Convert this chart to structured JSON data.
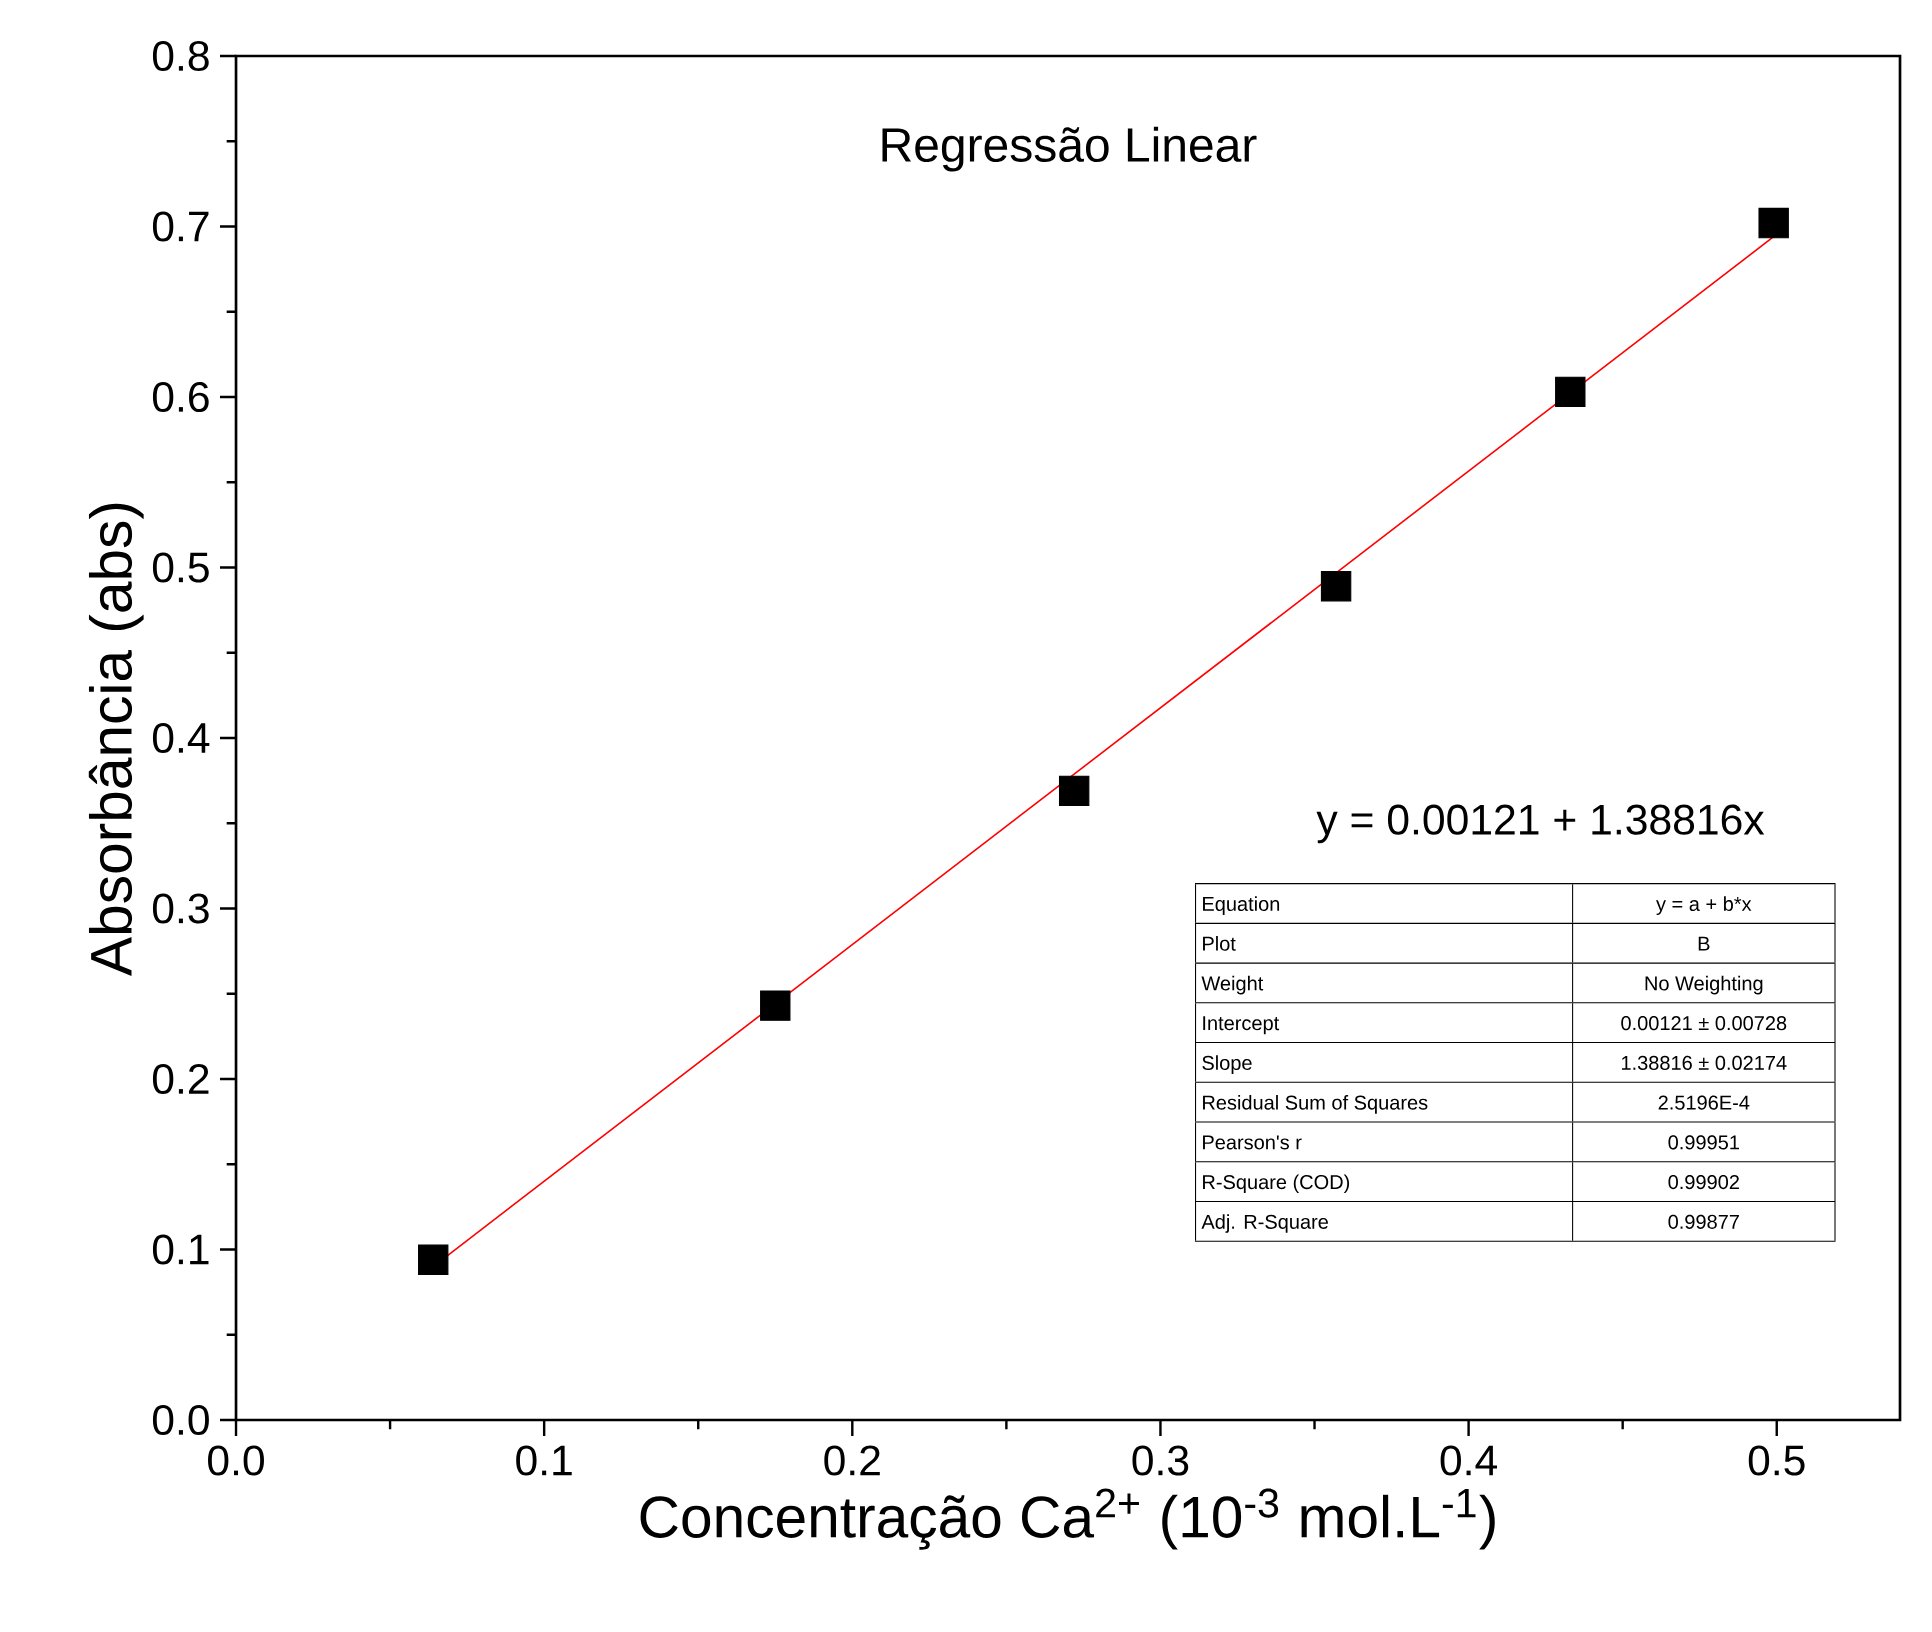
{
  "chart_data": {
    "type": "scatter",
    "title": "Regressão Linear",
    "xlabel": "Concentração Ca$^{2+}$ (10$^{-3}$ mol.L$^{-1}$)",
    "ylabel": "Absorbância (abs)",
    "series": [
      {
        "color": "#000000",
        "x": [
          0.064,
          0.175,
          0.272,
          0.357,
          0.433,
          0.499
        ],
        "values": [
          0.094,
          0.243,
          0.369,
          0.489,
          0.603,
          0.702
        ]
      },
      {
        "type": "line",
        "marker": "none",
        "color": "#ff0000",
        "x": [
          0.064,
          0.499
        ],
        "values": [
          0.09,
          0.694
        ]
      }
    ],
    "marker": "square",
    "grid": false,
    "xlim": [
      0,
      0.54
    ],
    "ylim": [
      0,
      0.8
    ],
    "xticks": [
      {
        "value": 0,
        "label": "0.0"
      },
      {
        "value": 0.1,
        "label": "0.1"
      },
      {
        "value": 0.2,
        "label": "0.2"
      },
      {
        "value": 0.3,
        "label": "0.3"
      },
      {
        "value": 0.4,
        "label": "0.4"
      },
      {
        "value": 0.5,
        "label": "0.5"
      }
    ],
    "yticks": [
      {
        "value": 0,
        "label": "0.0"
      },
      {
        "value": 0.1,
        "label": "0.1"
      },
      {
        "value": 0.2,
        "label": "0.2"
      },
      {
        "value": 0.3,
        "label": "0.3"
      },
      {
        "value": 0.4,
        "label": "0.4"
      },
      {
        "value": 0.5,
        "label": "0.5"
      },
      {
        "value": 0.6,
        "label": "0.6"
      },
      {
        "value": 0.7,
        "label": "0.7"
      },
      {
        "value": 0.8,
        "label": "0.8"
      }
    ],
    "annotations": [
      "y = 0.00121 + 1.38816x",
      "Equation",
      "y = a + b*x",
      "Plot",
      "B",
      "Weight",
      "No Weighting",
      "Intercept",
      "0.00121 ± 0.00728",
      "Slope",
      "1.38816 ± 0.02174",
      "Residual Sum of Squares",
      "2.5196E-4",
      "Pearson's r",
      "0.99951",
      "R-Square (COD)",
      "0.99902",
      "Adj. R-Square",
      "0.99877"
    ]
  }
}
